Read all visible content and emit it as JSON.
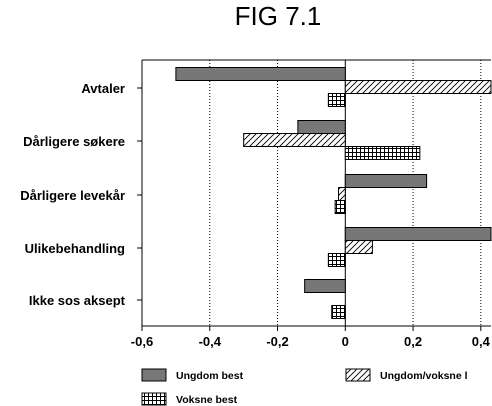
{
  "chart_data": {
    "type": "bar",
    "orientation": "horizontal",
    "title": "FIG 7.1",
    "categories": [
      "Avtaler",
      "Dårligere søkere",
      "Dårligere levekår",
      "Ulikebehandling",
      "Ikke sos aksept"
    ],
    "series": [
      {
        "name": "Ungdom best",
        "fill": "solid-gray",
        "color": "#777777",
        "values": [
          -0.5,
          -0.14,
          0.24,
          0.43,
          -0.12
        ]
      },
      {
        "name": "Ungdom/voksne l",
        "fill": "diagonal-hatch",
        "color": "#000000",
        "values": [
          0.43,
          -0.3,
          -0.02,
          0.08,
          0.0
        ]
      },
      {
        "name": "Voksne best",
        "fill": "grid-hatch",
        "color": "#000000",
        "values": [
          -0.05,
          0.22,
          -0.03,
          -0.05,
          -0.04
        ]
      }
    ],
    "xlim": [
      -0.6,
      0.43
    ],
    "xticks": [
      -0.6,
      -0.4,
      -0.2,
      0,
      0.2,
      0.4
    ],
    "xtick_labels": [
      "-0,6",
      "-0,4",
      "-0,2",
      "0",
      "0,2",
      "0,4"
    ],
    "grid": "vertical-dotted",
    "legend": "bottom"
  }
}
